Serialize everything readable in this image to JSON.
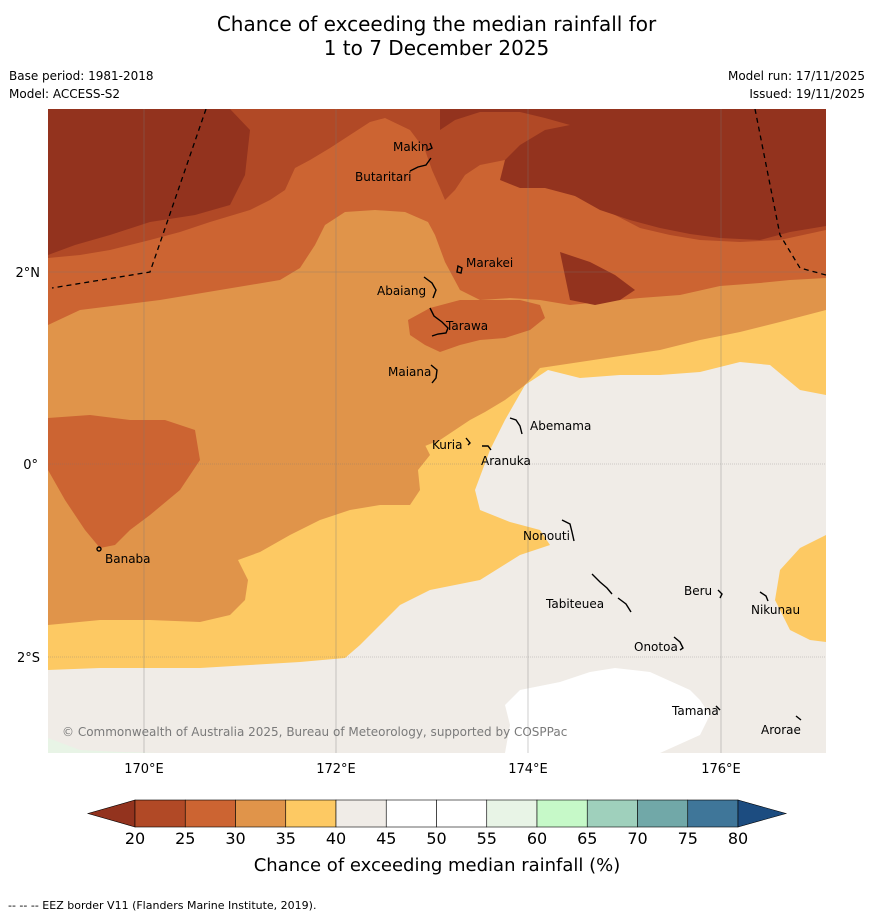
{
  "title_line1": "Chance of exceeding the median rainfall for",
  "title_line2": "1 to 7 December 2025",
  "meta_left": [
    "Base period: 1981-2018",
    "Model: ACCESS-S2"
  ],
  "meta_right": [
    "Model run: 17/11/2025",
    "Issued: 19/11/2025"
  ],
  "x_ticks": [
    "170°E",
    "172°E",
    "174°E",
    "176°E"
  ],
  "y_ticks": [
    "2°N",
    "0°",
    "2°S"
  ],
  "islands": [
    "Makin",
    "Butaritari",
    "Marakei",
    "Abaiang",
    "Tarawa",
    "Maiana",
    "Abemama",
    "Kuria",
    "Aranuka",
    "Banaba",
    "Nonouti",
    "Beru",
    "Nikunau",
    "Tabiteuea",
    "Onotoa",
    "Tamana",
    "Arorae"
  ],
  "credit": "© Commonwealth of Australia 2025, Bureau of Meteorology, supported by COSPPac",
  "colorbar": {
    "title": "Chance of exceeding median rainfall (%)",
    "ticks": [
      "20",
      "25",
      "30",
      "35",
      "40",
      "45",
      "50",
      "55",
      "60",
      "65",
      "70",
      "75",
      "80"
    ],
    "colors": [
      "#93331e",
      "#b14926",
      "#cc6432",
      "#e0944a",
      "#fdc963",
      "#f0ece7",
      "#ffffff",
      "#ffffff",
      "#e8f4e6",
      "#c6f9c8",
      "#9fd0bc",
      "#71a8a8",
      "#3f7699",
      "#1c4c80"
    ]
  },
  "footer": "--  --  -- EEZ border V11 (Flanders Marine Institute, 2019)."
}
